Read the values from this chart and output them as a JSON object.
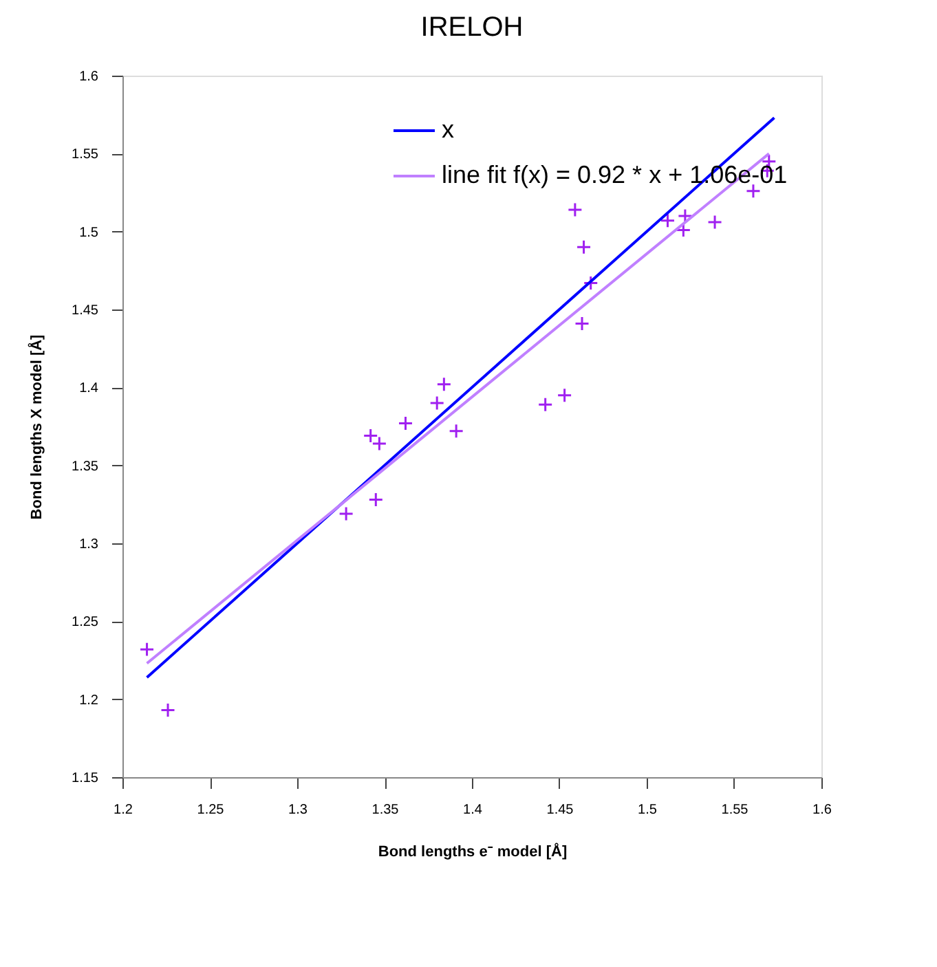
{
  "chart_data": {
    "type": "scatter",
    "title": "IRELOH",
    "xlabel": "Bond lengths e⁻ model [Å]",
    "ylabel": "Bond lengths X model [Å]",
    "xlim": [
      1.2,
      1.6
    ],
    "xticks": [
      1.2,
      1.25,
      1.3,
      1.35,
      1.4,
      1.45,
      1.5,
      1.55,
      1.6
    ],
    "ylim": [
      1.15,
      1.6
    ],
    "yticks": [
      1.15,
      1.2,
      1.25,
      1.3,
      1.35,
      1.4,
      1.45,
      1.5,
      1.55,
      1.6
    ],
    "grid": false,
    "legend": "top right",
    "series": [
      {
        "marker": "cross",
        "color": "#a020f0",
        "x": [
          1.214,
          1.226,
          1.328,
          1.345,
          1.342,
          1.347,
          1.362,
          1.38,
          1.384,
          1.391,
          1.442,
          1.453,
          1.459,
          1.464,
          1.463,
          1.468,
          1.512,
          1.522,
          1.521,
          1.539,
          1.561,
          1.57,
          1.569
        ],
        "values": [
          1.232,
          1.193,
          1.319,
          1.328,
          1.369,
          1.364,
          1.377,
          1.39,
          1.402,
          1.372,
          1.389,
          1.395,
          1.514,
          1.49,
          1.441,
          1.467,
          1.507,
          1.51,
          1.501,
          1.506,
          1.526,
          1.545,
          1.539
        ]
      },
      {
        "type": "line",
        "name": "x",
        "color": "#0000ff",
        "x": [
          1.214,
          1.573
        ],
        "values": [
          1.214,
          1.573
        ]
      },
      {
        "type": "line",
        "name": "line fit f(x) = 0.92 * x + 1.06e-01",
        "color": "#c080ff",
        "x": [
          1.214,
          1.57
        ],
        "values": [
          1.223,
          1.55
        ]
      }
    ]
  }
}
